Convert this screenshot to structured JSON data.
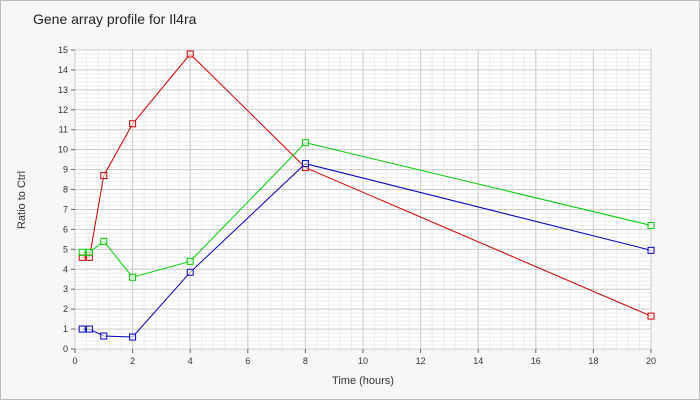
{
  "chart_data": {
    "type": "line",
    "title": "Gene array profile for Il4ra",
    "xlabel": "Time (hours)",
    "ylabel": "Ratio to Ctrl",
    "xlim": [
      0,
      20
    ],
    "ylim": [
      0,
      15
    ],
    "x_ticks": [
      "0",
      "2",
      "4",
      "6",
      "8",
      "10",
      "12",
      "14",
      "16",
      "18",
      "20"
    ],
    "y_ticks": [
      "0",
      "1",
      "2",
      "3",
      "4",
      "5",
      "6",
      "7",
      "8",
      "9",
      "10",
      "11",
      "12",
      "13",
      "14",
      "15"
    ],
    "grid": true,
    "legend": "none",
    "marker": "square",
    "series": [
      {
        "color": "#cc0000",
        "x": [
          0.25,
          0.5,
          1,
          2,
          4,
          8,
          20
        ],
        "y": [
          4.6,
          4.6,
          8.7,
          11.3,
          14.8,
          9.1,
          1.65
        ]
      },
      {
        "color": "#00cc00",
        "x": [
          0.25,
          0.5,
          1,
          2,
          4,
          8,
          20
        ],
        "y": [
          4.85,
          4.85,
          5.4,
          3.6,
          4.4,
          10.35,
          6.2
        ]
      },
      {
        "color": "#0000bb",
        "x": [
          0.25,
          0.5,
          1,
          2,
          4,
          8,
          20
        ],
        "y": [
          1.0,
          1.0,
          0.65,
          0.6,
          3.85,
          9.3,
          4.95
        ]
      }
    ]
  }
}
